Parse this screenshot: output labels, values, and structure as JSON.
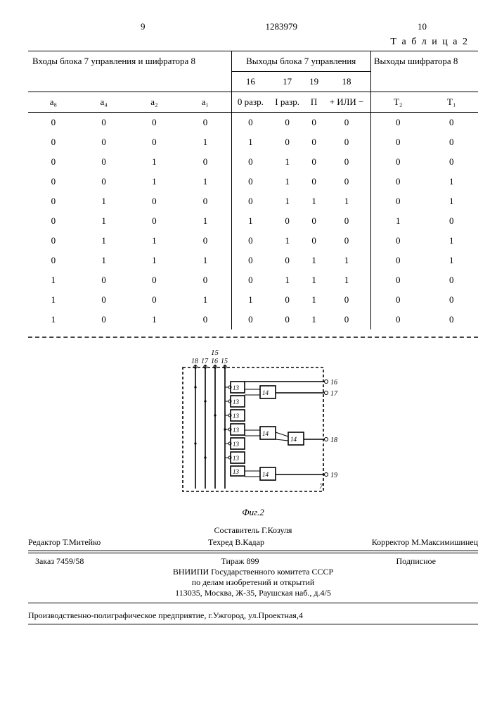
{
  "header": {
    "left_page": "9",
    "doc_number": "1283979",
    "right_page": "10",
    "table_label": "Т а б л и ц а  2"
  },
  "table": {
    "group_headers": {
      "inputs": "Входы блока 7 управления и шифратора 8",
      "ctrl_outputs": "Выходы блока 7 управления",
      "enc_outputs": "Выходы шифратора 8"
    },
    "columns": [
      "а₈",
      "а₄",
      "а₂",
      "а₁",
      "16\n0 разр.",
      "17\nI разр.",
      "19\nП",
      "18\n+ ИЛИ −",
      "Т₂",
      "Т₁"
    ],
    "rows": [
      [
        0,
        0,
        0,
        0,
        0,
        0,
        0,
        0,
        0,
        0
      ],
      [
        0,
        0,
        0,
        1,
        1,
        0,
        0,
        0,
        0,
        0
      ],
      [
        0,
        0,
        1,
        0,
        0,
        1,
        0,
        0,
        0,
        0
      ],
      [
        0,
        0,
        1,
        1,
        0,
        1,
        0,
        0,
        0,
        1
      ],
      [
        0,
        1,
        0,
        0,
        0,
        1,
        1,
        1,
        0,
        1
      ],
      [
        0,
        1,
        0,
        1,
        1,
        0,
        0,
        0,
        1,
        0
      ],
      [
        0,
        1,
        1,
        0,
        0,
        1,
        0,
        0,
        0,
        1
      ],
      [
        0,
        1,
        1,
        1,
        0,
        0,
        1,
        1,
        0,
        1
      ],
      [
        1,
        0,
        0,
        0,
        0,
        1,
        1,
        1,
        0,
        0
      ],
      [
        1,
        0,
        0,
        1,
        1,
        0,
        1,
        0,
        0,
        0
      ],
      [
        1,
        0,
        1,
        0,
        0,
        0,
        1,
        0,
        0,
        0
      ]
    ]
  },
  "diagram": {
    "caption": "Фиг.2",
    "top_label": "15",
    "input_labels": [
      "18",
      "17",
      "16",
      "15"
    ],
    "left_block_labels": [
      "13",
      "13",
      "13",
      "13",
      "13",
      "13"
    ],
    "mid_block_labels": [
      "14",
      "14",
      "14"
    ],
    "right_block_label": "14",
    "output_labels": [
      "16",
      "17",
      "18",
      "19"
    ],
    "corner_label": "7",
    "stroke": "#000000",
    "stroke_width": 1.6,
    "dash": "4,3"
  },
  "credits": {
    "composer": "Составитель Г.Козуля",
    "editor": "Редактор Т.Митейко",
    "tech_ed": "Техред В.Кадар",
    "corrector": "Корректор М.Максимишинец",
    "order": "Заказ 7459/58",
    "print_run": "Тираж 899",
    "subscription": "Подписное",
    "org1": "ВНИИПИ Государственного комитета СССР",
    "org2": "по делам изобретений и открытий",
    "addr": "113035, Москва, Ж-35, Раушская наб., д.4/5",
    "printer": "Производственно-полиграфическое предприятие, г.Ужгород, ул.Проектная,4"
  }
}
